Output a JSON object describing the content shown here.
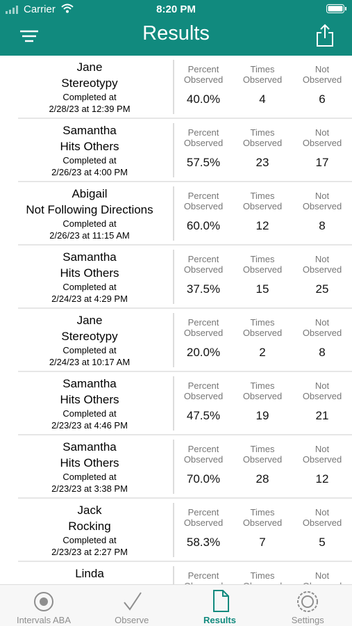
{
  "status_bar": {
    "carrier": "Carrier",
    "time": "8:20 PM"
  },
  "header": {
    "title": "Results"
  },
  "labels": {
    "completed": "Completed at",
    "percent": "Percent Observed",
    "times": "Times Observed",
    "not": "Not Observed"
  },
  "rows": [
    {
      "name": "Jane",
      "behavior": "Stereotypy",
      "date": "2/28/23 at 12:39 PM",
      "percent": "40.0%",
      "times": "4",
      "not": "6"
    },
    {
      "name": "Samantha",
      "behavior": "Hits Others",
      "date": "2/26/23 at 4:00 PM",
      "percent": "57.5%",
      "times": "23",
      "not": "17"
    },
    {
      "name": "Abigail",
      "behavior": "Not Following Directions",
      "date": "2/26/23 at 11:15 AM",
      "percent": "60.0%",
      "times": "12",
      "not": "8"
    },
    {
      "name": "Samantha",
      "behavior": "Hits Others",
      "date": "2/24/23 at 4:29 PM",
      "percent": "37.5%",
      "times": "15",
      "not": "25"
    },
    {
      "name": "Jane",
      "behavior": "Stereotypy",
      "date": "2/24/23 at 10:17 AM",
      "percent": "20.0%",
      "times": "2",
      "not": "8"
    },
    {
      "name": "Samantha",
      "behavior": "Hits Others",
      "date": "2/23/23 at 4:46 PM",
      "percent": "47.5%",
      "times": "19",
      "not": "21"
    },
    {
      "name": "Samantha",
      "behavior": "Hits Others",
      "date": "2/23/23 at 3:38 PM",
      "percent": "70.0%",
      "times": "28",
      "not": "12"
    },
    {
      "name": "Jack",
      "behavior": "Rocking",
      "date": "2/23/23 at 2:27 PM",
      "percent": "58.3%",
      "times": "7",
      "not": "5"
    },
    {
      "name": "Linda"
    }
  ],
  "tabs": [
    "Intervals ABA",
    "Observe",
    "Results",
    "Settings"
  ]
}
